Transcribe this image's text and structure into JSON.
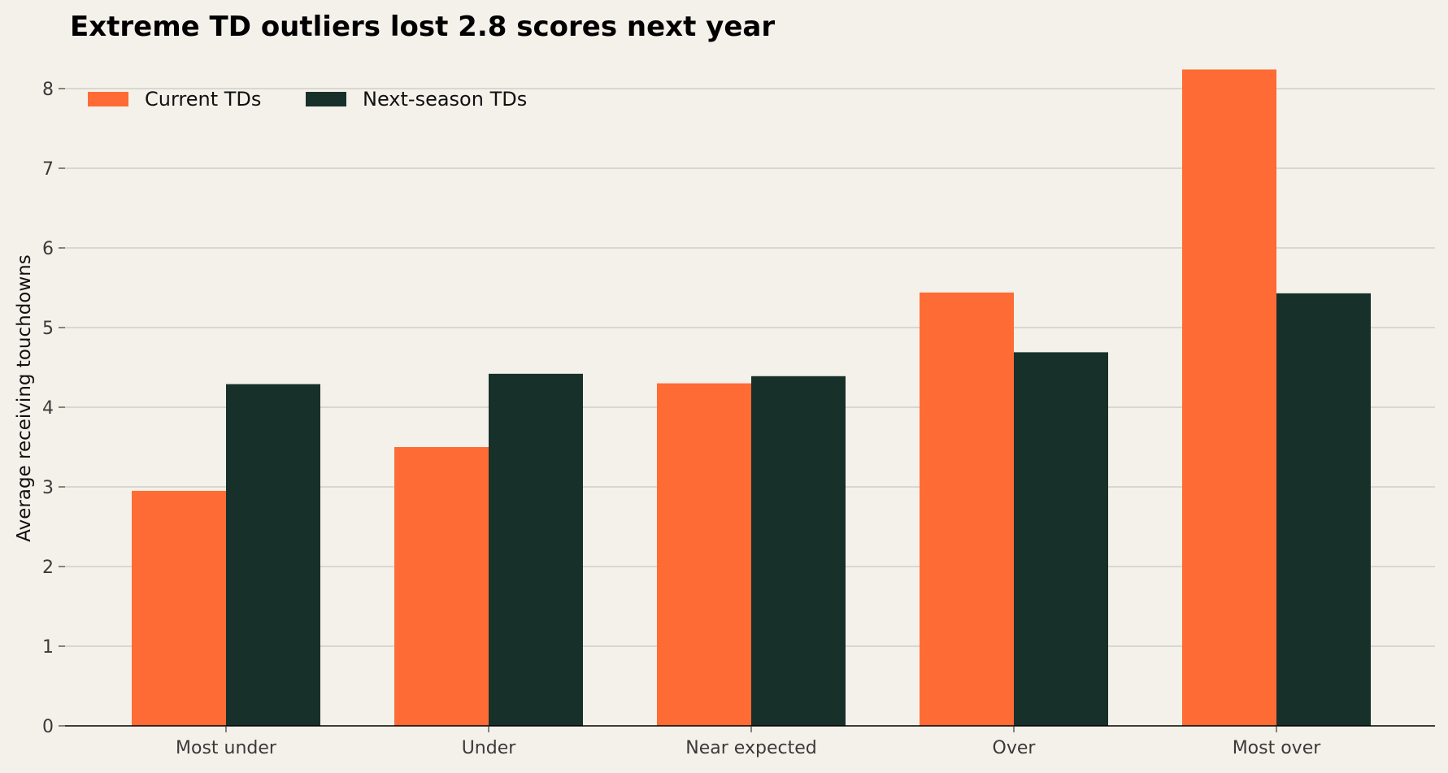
{
  "chart_data": {
    "type": "bar",
    "title": "Extreme TD outliers lost 2.8 scores next year",
    "xlabel": "",
    "ylabel": "Average receiving touchdowns",
    "categories": [
      "Most under",
      "Under",
      "Near expected",
      "Over",
      "Most over"
    ],
    "series": [
      {
        "name": "Current TDs",
        "values": [
          2.95,
          3.5,
          4.3,
          5.44,
          8.24
        ],
        "color": "#ff6b35"
      },
      {
        "name": "Next-season TDs",
        "values": [
          4.29,
          4.42,
          4.39,
          4.69,
          5.43
        ],
        "color": "#18302a"
      }
    ],
    "ylim": [
      0,
      8.5
    ],
    "yticks": [
      0,
      1,
      2,
      3,
      4,
      5,
      6,
      7,
      8
    ],
    "grid": "horizontal",
    "legend_position": "top-left",
    "colors": {
      "background": "#f4f1ea",
      "grid": "#c8c8c2",
      "axis": "#000000",
      "tick_text": "#3a3a3a"
    }
  }
}
